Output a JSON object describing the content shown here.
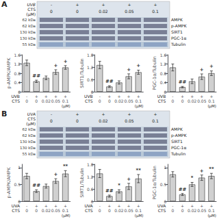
{
  "chart_data": [
    {
      "type": "blot",
      "title": "A",
      "categories": [
        "-\n0",
        "+\n0",
        "+\n0.02",
        "+\n0.05",
        "+\n0.1"
      ],
      "xlabel_rows": [
        "UVB",
        "CTS"
      ],
      "xlabel_unit": "(μM)",
      "rows": [
        {
          "name": "AMPK",
          "label": "62 kDa"
        },
        {
          "name": "p-AMPK",
          "label": "62 kDa"
        },
        {
          "name": "SIRT1",
          "label": "130 kDa"
        },
        {
          "name": "PGC-1α",
          "label": "130 kDa"
        },
        {
          "name": "Tubulin",
          "label": "55 kDa"
        }
      ]
    },
    {
      "type": "bar",
      "ylabel": "p-AMPK/AMPK",
      "color": "#d0d0d0",
      "categories": [
        "-\n0",
        "+\n0",
        "+\n0.02",
        "+\n0.05",
        "+\n0.1"
      ],
      "values": [
        1.25,
        0.45,
        0.6,
        0.85,
        1.05
      ],
      "errors": [
        0.12,
        0.05,
        0.08,
        0.1,
        0.08
      ],
      "annotations": [
        {
          "category": "+\n0",
          "text": "##"
        },
        {
          "category": "+\n0.05",
          "text": "+"
        },
        {
          "category": "+\n0.1",
          "text": "+"
        }
      ],
      "ylim": [
        0,
        1.6
      ],
      "yticks": [
        0,
        0.4,
        0.8,
        1.2,
        1.6
      ],
      "grid": false,
      "xlabel_rows": [
        "UVB",
        "CTS"
      ],
      "xlabel_unit": "(μM)"
    },
    {
      "type": "bar",
      "ylabel": "SIRT1/Tubulin",
      "color": "#d0d0d0",
      "categories": [
        "-\n0",
        "+\n0",
        "+\n0.02",
        "+\n0.05",
        "+\n0.1"
      ],
      "values": [
        1.3,
        0.25,
        0.45,
        0.75,
        0.95
      ],
      "errors": [
        0.18,
        0.04,
        0.08,
        0.12,
        0.1
      ],
      "annotations": [
        {
          "category": "+\n0",
          "text": "##"
        },
        {
          "category": "+\n0.05",
          "text": "+"
        },
        {
          "category": "+\n0.1",
          "text": "+"
        }
      ],
      "ylim": [
        0,
        1.8
      ],
      "yticks": [
        0,
        0.6,
        1.2,
        1.8
      ],
      "grid": false,
      "xlabel_rows": [
        "UVB",
        "CTS"
      ],
      "xlabel_unit": "(μM)"
    },
    {
      "type": "bar",
      "ylabel": "PGC-1α/Tubulin",
      "color": "#d0d0d0",
      "categories": [
        "-\n0",
        "+\n0",
        "+\n0.02",
        "+\n0.05",
        "+\n0.1"
      ],
      "values": [
        1.05,
        0.2,
        0.45,
        0.65,
        0.8
      ],
      "errors": [
        0.15,
        0.03,
        0.1,
        0.12,
        0.1
      ],
      "annotations": [
        {
          "category": "+\n0",
          "text": "##"
        },
        {
          "category": "+\n0.05",
          "text": "+"
        },
        {
          "category": "+\n0.1",
          "text": "+"
        }
      ],
      "ylim": [
        0,
        1.6
      ],
      "yticks": [
        0,
        0.4,
        0.8,
        1.2,
        1.6
      ],
      "grid": false,
      "xlabel_rows": [
        "UVB",
        "CTS"
      ],
      "xlabel_unit": "(μM)"
    },
    {
      "type": "blot",
      "title": "B",
      "categories": [
        "-\n0",
        "+\n0",
        "+\n0.02",
        "+\n0.05",
        "+\n0.1"
      ],
      "xlabel_rows": [
        "UVA",
        "CTS"
      ],
      "xlabel_unit": "(μM)",
      "rows": [
        {
          "name": "AMPK",
          "label": "62 kDa"
        },
        {
          "name": "p-AMPK",
          "label": "62 kDa"
        },
        {
          "name": "SIRT1",
          "label": "130 kDa"
        },
        {
          "name": "PGC-1α",
          "label": "130 kDa"
        },
        {
          "name": "Tubulin",
          "label": "55 kDa"
        }
      ]
    },
    {
      "type": "bar",
      "ylabel": "p-AMPK/AMPK",
      "color": "#d0d0d0",
      "categories": [
        "-\n0",
        "+\n0",
        "+\n0.02",
        "+\n0.05",
        "+\n0.1"
      ],
      "values": [
        0.75,
        0.3,
        0.45,
        0.6,
        0.82
      ],
      "errors": [
        0.08,
        0.04,
        0.06,
        0.07,
        0.09
      ],
      "annotations": [
        {
          "category": "+\n0",
          "text": "##"
        },
        {
          "category": "+\n0.05",
          "text": "+"
        },
        {
          "category": "+\n0.1",
          "text": "**"
        }
      ],
      "ylim": [
        0,
        1.1
      ],
      "yticks": [
        0,
        0.5,
        1
      ],
      "grid": false,
      "xlabel_rows": [
        "UVA",
        "CTS"
      ],
      "xlabel_unit": "(μM)"
    },
    {
      "type": "bar",
      "ylabel": "SIRT1/Tubulin",
      "color": "#d0d0d0",
      "categories": [
        "-\n0",
        "+\n0",
        "+\n0.02",
        "+\n0.05",
        "+\n0.1"
      ],
      "values": [
        1.35,
        0.25,
        0.48,
        0.72,
        1.1
      ],
      "errors": [
        0.2,
        0.05,
        0.08,
        0.15,
        0.2
      ],
      "annotations": [
        {
          "category": "+\n0",
          "text": "##"
        },
        {
          "category": "+\n0.02",
          "text": "*"
        },
        {
          "category": "+\n0.05",
          "text": "+"
        },
        {
          "category": "+\n0.1",
          "text": "**"
        }
      ],
      "ylim": [
        0,
        1.8
      ],
      "yticks": [
        0,
        0.6,
        1.2,
        1.8
      ],
      "grid": false,
      "xlabel_rows": [
        "UVA",
        "CTS"
      ],
      "xlabel_unit": "(μM)"
    },
    {
      "type": "bar",
      "ylabel": "PGC-1α/Tubulin",
      "color": "#d0d0d0",
      "categories": [
        "-\n0",
        "+\n0",
        "+\n0.02",
        "+\n0.05",
        "+\n0.1"
      ],
      "values": [
        0.8,
        0.2,
        0.5,
        0.7,
        0.75
      ],
      "errors": [
        0.08,
        0.03,
        0.06,
        0.08,
        0.08
      ],
      "annotations": [
        {
          "category": "+\n0",
          "text": "##"
        },
        {
          "category": "+\n0.02",
          "text": "*"
        },
        {
          "category": "+\n0.05",
          "text": "+"
        },
        {
          "category": "+\n0.1",
          "text": "**"
        }
      ],
      "ylim": [
        0,
        1.1
      ],
      "yticks": [
        0,
        0.5,
        1
      ],
      "grid": false,
      "xlabel_rows": [
        "UVA",
        "CTS"
      ],
      "xlabel_unit": "(μM)"
    }
  ]
}
